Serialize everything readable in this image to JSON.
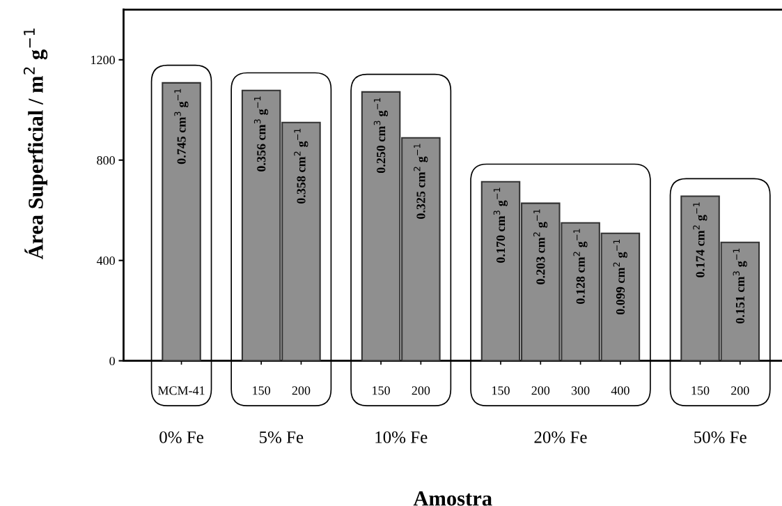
{
  "chart_data": {
    "type": "bar",
    "xlabel": "Amostra",
    "ylabel": "Área Superficial / m$^{2}$ g$^{−1}$",
    "categories": [
      "MCM-41",
      null,
      "150",
      "200",
      null,
      "150",
      "200",
      null,
      "150",
      "200",
      "300",
      "400",
      null,
      "150",
      "200"
    ],
    "values": [
      1108,
      null,
      1078,
      950,
      null,
      1072,
      889,
      null,
      714,
      628,
      550,
      508,
      null,
      656,
      472
    ],
    "color": "#8f8f8f",
    "ylim": [
      0,
      1400
    ],
    "yticks": [
      0,
      400,
      800,
      1200
    ],
    "annotations": [
      "0.745 cm$^{3}$ g$^{−1}$",
      "0.356 cm$^{3}$ g$^{−1}$",
      "0.358 cm$^{2}$ g$^{−1}$",
      "0.250 cm$^{3}$ g$^{−1}$",
      "0.325 cm$^{2}$ g$^{−1}$",
      "0.170 cm$^{3}$ g$^{−1}$",
      "0.203 cm$^{2}$ g$^{−1}$",
      "0.128 cm$^{2}$ g$^{−1}$",
      "0.099 cm$^{2}$ g$^{−1}$",
      "0.174 cm$^{2}$ g$^{−1}$",
      "0.151 cm$^{3}$ g$^{−1}$",
      "0% Fe",
      "5% Fe",
      "10% Fe",
      "20% Fe",
      "50% Fe"
    ],
    "grid": false,
    "legend": false
  }
}
